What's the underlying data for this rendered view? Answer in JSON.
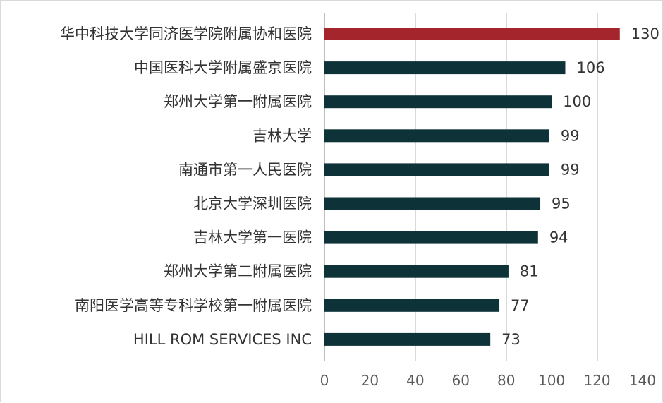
{
  "chart_data": {
    "type": "bar",
    "orientation": "horizontal",
    "categories": [
      "华中科技大学同济医学院附属协和医院",
      "中国医科大学附属盛京医院",
      "郑州大学第一附属医院",
      "吉林大学",
      "南通市第一人民医院",
      "北京大学深圳医院",
      "吉林大学第一医院",
      "郑州大学第二附属医院",
      "南阳医学高等专科学校第一附属医院",
      "HILL ROM SERVICES INC"
    ],
    "values": [
      130,
      106,
      100,
      99,
      99,
      95,
      94,
      81,
      77,
      73
    ],
    "value_labels": [
      "130",
      "106",
      "100",
      "99",
      "99",
      "95",
      "94",
      "81",
      "77",
      "73"
    ],
    "title": "",
    "xlabel": "",
    "ylabel": "",
    "xlim": [
      0,
      140
    ],
    "xticks": [
      0,
      20,
      40,
      60,
      80,
      100,
      120,
      140
    ],
    "xtick_labels": [
      "0",
      "20",
      "40",
      "60",
      "80",
      "100",
      "120",
      "140"
    ],
    "grid": "vertical",
    "legend": "none",
    "colors": {
      "highlight": "#a4262c",
      "bar": "#0d3339"
    },
    "highlight_index": 0
  }
}
